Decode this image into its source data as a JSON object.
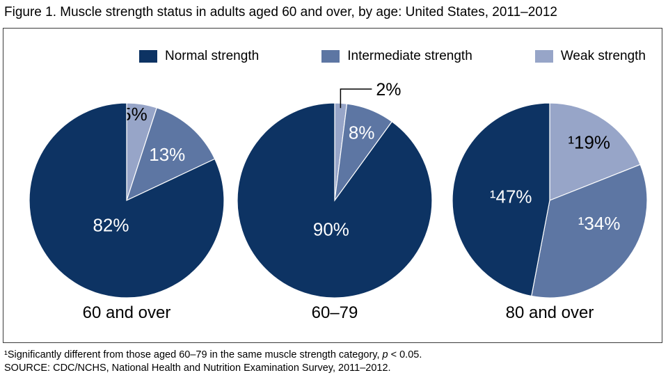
{
  "figure": {
    "title": "Figure 1. Muscle strength status in adults aged 60 and over, by age: United States, 2011–2012",
    "footnote": {
      "pre": "¹Significantly different from those aged 60–79 in the same muscle strength category, ",
      "italic": "p",
      "post": " < 0.05."
    },
    "source": "SOURCE: CDC/NCHS, National Health and Nutrition Examination Survey, 2011–2012."
  },
  "chart_data": {
    "type": "pie",
    "title": "Figure 1. Muscle strength status in adults aged 60 and over, by age: United States, 2011–2012",
    "legend_position": "top, inside framed plot area",
    "layout": "three pies side by side; slices start at 12 o'clock and run clockwise in order weak, intermediate, normal",
    "legend": [
      {
        "label": "Normal strength",
        "color": "#0d3363"
      },
      {
        "label": "Intermediate strength",
        "color": "#5d76a3"
      },
      {
        "label": "Weak strength",
        "color": "#97a5c8"
      }
    ],
    "pies": [
      {
        "caption": "60 and over",
        "slices": [
          {
            "category": "Weak strength",
            "value": 5,
            "label": "5%",
            "legend_index": 2,
            "label_style": "dark",
            "label_r": 0.89,
            "label_angle_deg": 5
          },
          {
            "category": "Intermediate strength",
            "value": 13,
            "label": "13%",
            "legend_index": 1,
            "label_style": "light",
            "label_r": 0.63
          },
          {
            "category": "Normal strength",
            "value": 82,
            "label": "82%",
            "legend_index": 0,
            "label_style": "light",
            "label_r": 0.3
          }
        ]
      },
      {
        "caption": "60–79",
        "slices": [
          {
            "category": "Weak strength",
            "value": 2,
            "label": "2%",
            "legend_index": 2,
            "label_style": "callout"
          },
          {
            "category": "Intermediate strength",
            "value": 8,
            "label": "8%",
            "legend_index": 1,
            "label_style": "light",
            "label_r": 0.75
          },
          {
            "category": "Normal strength",
            "value": 90,
            "label": "90%",
            "legend_index": 0,
            "label_style": "light",
            "label_r": 0.3,
            "label_angle_deg": 187
          }
        ]
      },
      {
        "caption": "80 and over",
        "slices": [
          {
            "category": "Weak strength",
            "value": 19,
            "label": "¹19%",
            "legend_index": 2,
            "label_style": "dark",
            "label_r": 0.72
          },
          {
            "category": "Intermediate strength",
            "value": 34,
            "label": "¹34%",
            "legend_index": 1,
            "label_style": "light",
            "label_r": 0.56,
            "label_angle_deg": 115
          },
          {
            "category": "Normal strength",
            "value": 47,
            "label": "¹47%",
            "legend_index": 0,
            "label_style": "light",
            "label_r": 0.4
          }
        ]
      }
    ]
  }
}
